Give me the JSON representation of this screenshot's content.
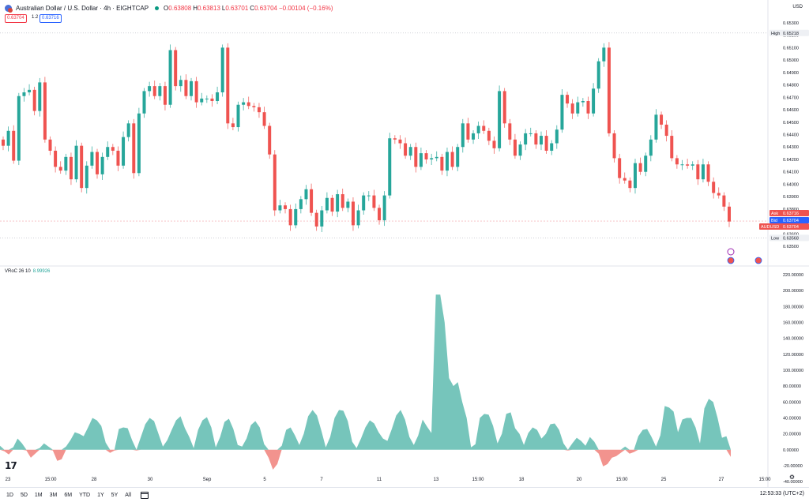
{
  "header": {
    "title": "Australian Dollar / U.S. Dollar · 4h · EIGHTCAP",
    "o_label": "O",
    "o_value": "0.63808",
    "h_label": "H",
    "h_value": "0.63813",
    "l_label": "L",
    "l_value": "0.63701",
    "c_label": "C",
    "c_value": "0.63704",
    "change": "−0.00104 (−0.16%)"
  },
  "price_boxes": {
    "bid": "0.63704",
    "spread": "1.2",
    "ask": "0.63716"
  },
  "currency": "USD",
  "indicator": {
    "name": "VRoC 26 10",
    "value": "8.99926"
  },
  "timeframes": [
    "1D",
    "5D",
    "1M",
    "3M",
    "6M",
    "YTD",
    "1Y",
    "5Y",
    "All"
  ],
  "clock": "12:53:33 (UTC+2)",
  "axis_tags": {
    "high_label": "High",
    "high_value": "0.65218",
    "ask_label": "Ask",
    "ask_value": "0.63716",
    "bid_label": "Bid",
    "bid_value": "0.63704",
    "sym_label": "AUDUSD",
    "sym_value": "0.63704",
    "low_label": "Low",
    "low_value": "0.63568"
  },
  "chart_data": [
    {
      "type": "candlestick",
      "ylim": [
        0.6345,
        0.6535
      ],
      "price_ticks": [
        "0.65300",
        "0.65200",
        "0.65100",
        "0.65000",
        "0.64900",
        "0.64800",
        "0.64700",
        "0.64600",
        "0.64500",
        "0.64400",
        "0.64300",
        "0.64200",
        "0.64100",
        "0.64000",
        "0.63900",
        "0.63800",
        "0.63600",
        "0.63500"
      ],
      "candles": [
        [
          0.6436,
          0.6431
        ],
        [
          0.6431,
          0.6443
        ],
        [
          0.6443,
          0.6419
        ],
        [
          0.6419,
          0.6471
        ],
        [
          0.6471,
          0.6474
        ],
        [
          0.6474,
          0.6476
        ],
        [
          0.6476,
          0.6459
        ],
        [
          0.6459,
          0.6482
        ],
        [
          0.6482,
          0.6436
        ],
        [
          0.6436,
          0.6427
        ],
        [
          0.6427,
          0.6414
        ],
        [
          0.6414,
          0.6411
        ],
        [
          0.6411,
          0.6422
        ],
        [
          0.6422,
          0.6404
        ],
        [
          0.6404,
          0.6431
        ],
        [
          0.6431,
          0.6397
        ],
        [
          0.6397,
          0.6415
        ],
        [
          0.6415,
          0.6426
        ],
        [
          0.6426,
          0.6408
        ],
        [
          0.6408,
          0.6422
        ],
        [
          0.6422,
          0.643
        ],
        [
          0.643,
          0.6427
        ],
        [
          0.6427,
          0.6415
        ],
        [
          0.6415,
          0.6438
        ],
        [
          0.6438,
          0.6449
        ],
        [
          0.6449,
          0.6409
        ],
        [
          0.6409,
          0.6457
        ],
        [
          0.6457,
          0.6475
        ],
        [
          0.6475,
          0.6479
        ],
        [
          0.6479,
          0.6471
        ],
        [
          0.6471,
          0.6479
        ],
        [
          0.6479,
          0.6464
        ],
        [
          0.6464,
          0.6508
        ],
        [
          0.6508,
          0.6479
        ],
        [
          0.6479,
          0.6484
        ],
        [
          0.6484,
          0.6471
        ],
        [
          0.6471,
          0.6483
        ],
        [
          0.6483,
          0.6466
        ],
        [
          0.6466,
          0.6469
        ],
        [
          0.6469,
          0.6469
        ],
        [
          0.6469,
          0.6467
        ],
        [
          0.6467,
          0.6474
        ],
        [
          0.6474,
          0.651
        ],
        [
          0.651,
          0.6449
        ],
        [
          0.6449,
          0.6446
        ],
        [
          0.6446,
          0.6464
        ],
        [
          0.6464,
          0.6466
        ],
        [
          0.6466,
          0.6463
        ],
        [
          0.6463,
          0.6462
        ],
        [
          0.6462,
          0.6458
        ],
        [
          0.6458,
          0.6447
        ],
        [
          0.6447,
          0.6424
        ],
        [
          0.6424,
          0.6379
        ],
        [
          0.6379,
          0.6383
        ],
        [
          0.6383,
          0.638
        ],
        [
          0.638,
          0.6367
        ],
        [
          0.6367,
          0.638
        ],
        [
          0.638,
          0.6388
        ],
        [
          0.6388,
          0.6396
        ],
        [
          0.6396,
          0.6377
        ],
        [
          0.6377,
          0.6366
        ],
        [
          0.6366,
          0.6379
        ],
        [
          0.6379,
          0.6389
        ],
        [
          0.6389,
          0.6378
        ],
        [
          0.6378,
          0.6392
        ],
        [
          0.6392,
          0.6381
        ],
        [
          0.6381,
          0.6386
        ],
        [
          0.6386,
          0.6367
        ],
        [
          0.6367,
          0.6379
        ],
        [
          0.6379,
          0.6391
        ],
        [
          0.6391,
          0.6391
        ],
        [
          0.6391,
          0.6381
        ],
        [
          0.6381,
          0.6371
        ],
        [
          0.6371,
          0.6391
        ],
        [
          0.6391,
          0.6437
        ],
        [
          0.6437,
          0.6436
        ],
        [
          0.6436,
          0.6433
        ],
        [
          0.6433,
          0.6423
        ],
        [
          0.6423,
          0.643
        ],
        [
          0.643,
          0.6414
        ],
        [
          0.6414,
          0.6425
        ],
        [
          0.6425,
          0.642
        ],
        [
          0.642,
          0.6421
        ],
        [
          0.6421,
          0.6422
        ],
        [
          0.6422,
          0.6411
        ],
        [
          0.6411,
          0.6426
        ],
        [
          0.6426,
          0.6414
        ],
        [
          0.6414,
          0.643
        ],
        [
          0.643,
          0.6449
        ],
        [
          0.6449,
          0.6436
        ],
        [
          0.6436,
          0.6441
        ],
        [
          0.6441,
          0.6447
        ],
        [
          0.6447,
          0.6443
        ],
        [
          0.6443,
          0.6435
        ],
        [
          0.6435,
          0.6429
        ],
        [
          0.6429,
          0.6475
        ],
        [
          0.6475,
          0.6449
        ],
        [
          0.6449,
          0.6436
        ],
        [
          0.6436,
          0.6423
        ],
        [
          0.6423,
          0.6432
        ],
        [
          0.6432,
          0.6441
        ],
        [
          0.6441,
          0.6441
        ],
        [
          0.6441,
          0.6432
        ],
        [
          0.6432,
          0.6439
        ],
        [
          0.6439,
          0.6427
        ],
        [
          0.6427,
          0.6433
        ],
        [
          0.6433,
          0.6444
        ],
        [
          0.6444,
          0.6472
        ],
        [
          0.6472,
          0.6465
        ],
        [
          0.6465,
          0.6457
        ],
        [
          0.6457,
          0.6466
        ],
        [
          0.6466,
          0.6467
        ],
        [
          0.6467,
          0.6457
        ],
        [
          0.6457,
          0.6477
        ],
        [
          0.6477,
          0.6499
        ],
        [
          0.6499,
          0.651
        ],
        [
          0.651,
          0.6441
        ],
        [
          0.6441,
          0.6421
        ],
        [
          0.6421,
          0.6405
        ],
        [
          0.6405,
          0.6403
        ],
        [
          0.6403,
          0.6397
        ],
        [
          0.6397,
          0.6417
        ],
        [
          0.6417,
          0.641
        ],
        [
          0.641,
          0.6423
        ],
        [
          0.6423,
          0.6436
        ],
        [
          0.6436,
          0.6456
        ],
        [
          0.6456,
          0.6448
        ],
        [
          0.6448,
          0.6439
        ],
        [
          0.6439,
          0.6421
        ],
        [
          0.6421,
          0.6416
        ],
        [
          0.6416,
          0.6416
        ],
        [
          0.6416,
          0.6415
        ],
        [
          0.6415,
          0.6416
        ],
        [
          0.6416,
          0.6404
        ],
        [
          0.6404,
          0.6416
        ],
        [
          0.6416,
          0.6402
        ],
        [
          0.6402,
          0.6393
        ],
        [
          0.6393,
          0.6391
        ],
        [
          0.6391,
          0.6382
        ],
        [
          0.6382,
          0.637
        ]
      ],
      "x_labels": [
        "23",
        "15:00",
        "28",
        "30",
        "Sep",
        "5",
        "7",
        "11",
        "13",
        "15:00",
        "18",
        "20",
        "15:00",
        "25",
        "27",
        "15:00"
      ]
    },
    {
      "type": "area",
      "title": "VRoC 26 10",
      "ylim": [
        -30,
        225
      ],
      "y_ticks": [
        "220.00000",
        "200.00000",
        "180.00000",
        "160.00000",
        "140.00000",
        "120.00000",
        "100.00000",
        "80.00000",
        "60.00000",
        "40.00000",
        "20.00000",
        "0.00000",
        "-20.00000",
        "-40.00000"
      ],
      "values": [
        5,
        -2,
        -6,
        3,
        14,
        8,
        -1,
        -10,
        -5,
        2,
        8,
        4,
        -1,
        -14,
        -12,
        4,
        12,
        22,
        20,
        17,
        28,
        40,
        37,
        30,
        9,
        -4,
        -1,
        26,
        28,
        27,
        12,
        -1,
        16,
        32,
        40,
        36,
        20,
        4,
        12,
        25,
        37,
        42,
        27,
        16,
        2,
        25,
        37,
        41,
        28,
        3,
        16,
        35,
        39,
        26,
        6,
        4,
        14,
        31,
        36,
        28,
        7,
        -10,
        -25,
        -18,
        5,
        25,
        28,
        18,
        6,
        20,
        42,
        50,
        43,
        24,
        3,
        16,
        40,
        50,
        49,
        36,
        10,
        2,
        14,
        28,
        37,
        33,
        22,
        14,
        11,
        26,
        43,
        50,
        38,
        16,
        6,
        18,
        38,
        29,
        21,
        195,
        195,
        160,
        90,
        80,
        85,
        60,
        40,
        3,
        7,
        40,
        45,
        44,
        30,
        8,
        20,
        45,
        47,
        27,
        20,
        6,
        21,
        28,
        25,
        14,
        20,
        32,
        33,
        25,
        8,
        -1,
        8,
        15,
        11,
        5,
        16,
        10,
        -5,
        -21,
        -18,
        -10,
        -8,
        -4,
        4,
        -5,
        -3,
        17,
        25,
        26,
        16,
        4,
        18,
        55,
        53,
        48,
        22,
        38,
        40,
        40,
        28,
        8,
        52,
        64,
        60,
        40,
        15,
        17,
        -9
      ],
      "x_labels": [
        "23",
        "15:00",
        "28",
        "30",
        "Sep",
        "5",
        "7",
        "11",
        "13",
        "15:00",
        "18",
        "20",
        "15:00",
        "25",
        "27",
        "15:00"
      ]
    }
  ],
  "colors": {
    "up": "#26a69a",
    "down": "#ef5350",
    "osc_up": "#76c5bb",
    "osc_down": "#f2938e"
  }
}
